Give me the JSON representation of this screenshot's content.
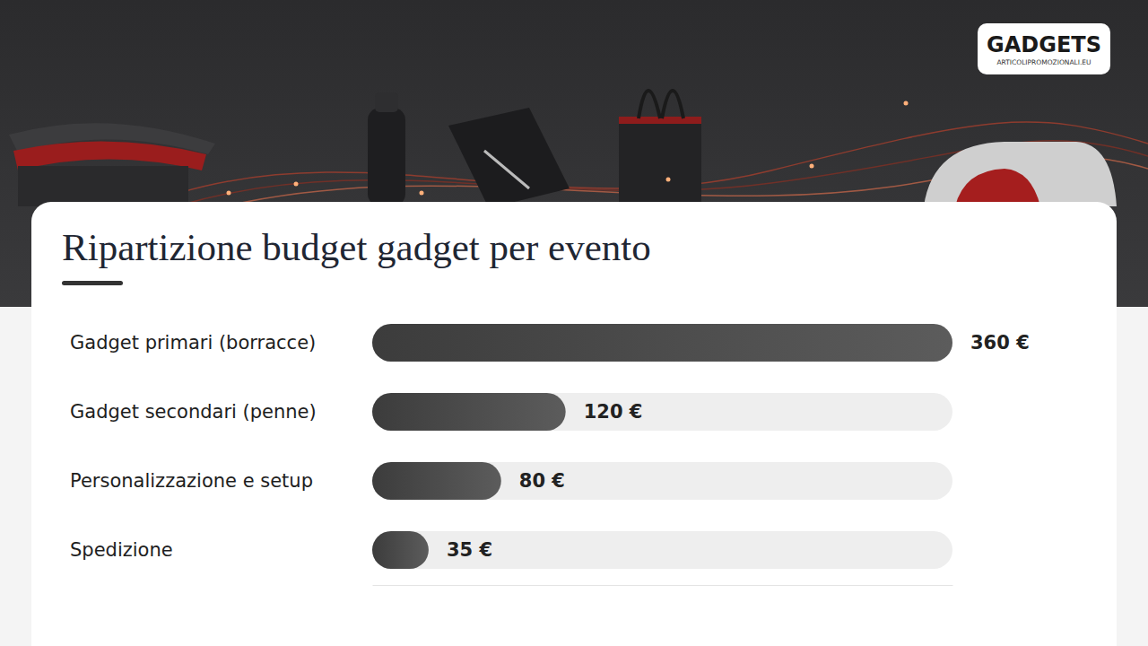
{
  "header": {
    "logo": "GADGETS",
    "logo_subtitle": "ARTICOLIPROMOZIONALI.EU"
  },
  "chart_data": {
    "type": "bar",
    "orientation": "horizontal",
    "title": "Ripartizione budget gadget per evento",
    "categories": [
      "Gadget primari (borracce)",
      "Gadget secondari (penne)",
      "Personalizzazione e setup",
      "Spedizione"
    ],
    "values": [
      360,
      120,
      80,
      35
    ],
    "value_labels": [
      "360 €",
      "120 €",
      "80 €",
      "35 €"
    ],
    "xlim": [
      0,
      360
    ],
    "data_labels": true,
    "tick_labels": false,
    "grid": false,
    "color": "#4a4a4a"
  }
}
